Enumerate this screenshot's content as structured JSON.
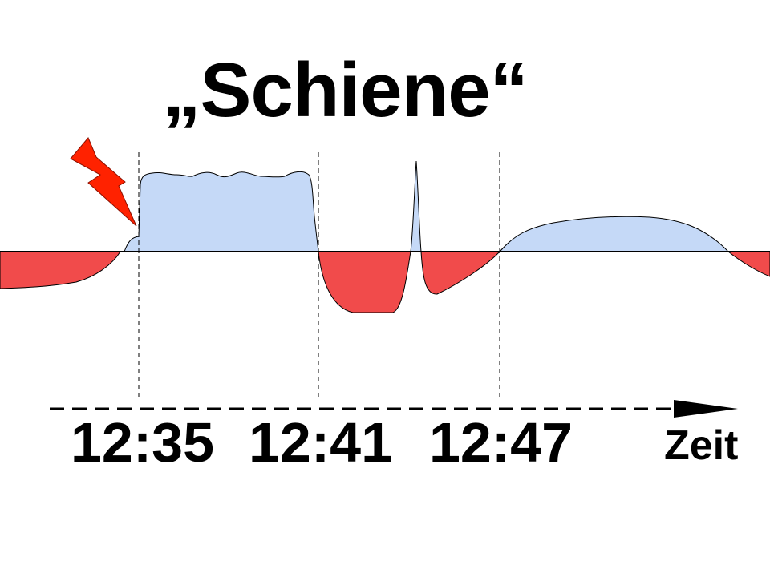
{
  "title": "„Schiene“",
  "time_labels": [
    "12:35",
    "12:41",
    "12:47"
  ],
  "axis_label": "Zeit",
  "colors": {
    "positive_fill": "#c5d9f7",
    "negative_fill": "#f14b4b",
    "lightning": "#ff2200",
    "outline": "#000000"
  },
  "icons": [
    "lightning-bolt-icon",
    "time-axis-arrow"
  ]
}
